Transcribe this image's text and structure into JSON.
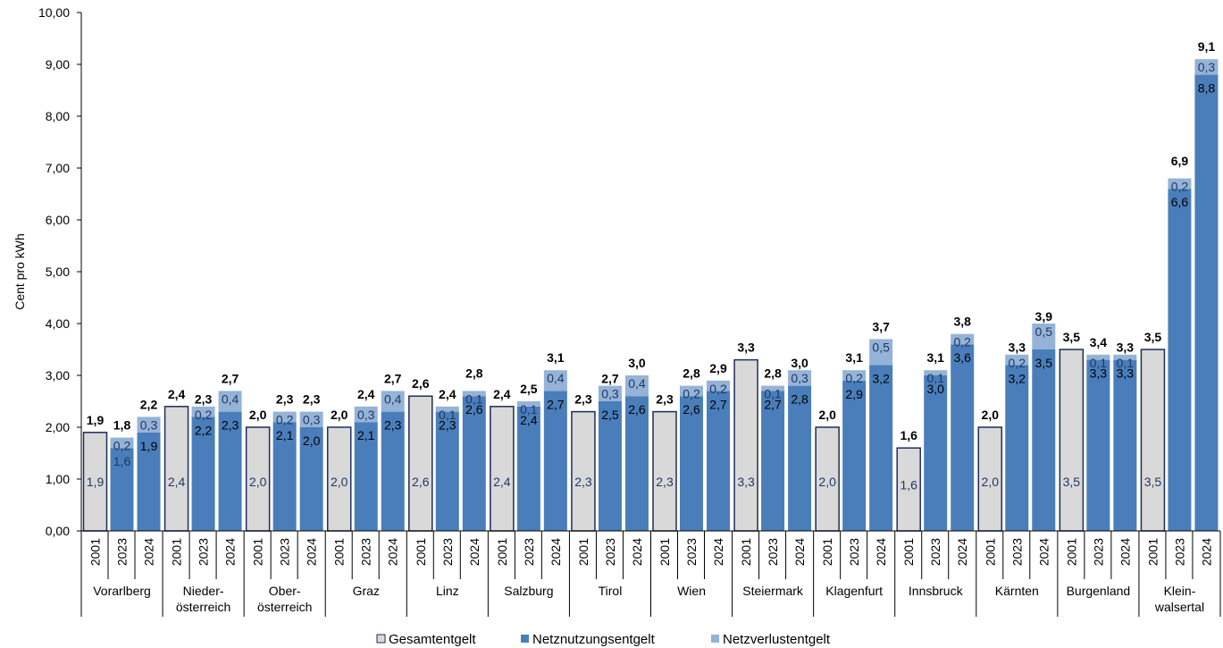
{
  "colors": {
    "gesamt_fill": "#d9d9d9",
    "gesamt_stroke": "#1f2d5c",
    "nutzung": "#4a7ebb",
    "verlust": "#95b3d7",
    "label_dark": "#1f3864",
    "total_label": "#000000",
    "axis": "#000000"
  },
  "chart_data": {
    "type": "bar",
    "stacked": true,
    "ylabel": "Cent pro kWh",
    "ylim": [
      0,
      10
    ],
    "y_ticks": [
      "0,00",
      "1,00",
      "2,00",
      "3,00",
      "4,00",
      "5,00",
      "6,00",
      "7,00",
      "8,00",
      "9,00",
      "10,00"
    ],
    "grid": false,
    "legend_position": "bottom",
    "legend": [
      {
        "name": "Gesamtentgelt",
        "color_key": "gesamt"
      },
      {
        "name": "Netznutzungsentgelt",
        "color_key": "nutzung"
      },
      {
        "name": "Netzverlustentgelt",
        "color_key": "verlust"
      }
    ],
    "groups": [
      {
        "name": "Vorarlberg",
        "bars": [
          {
            "year": "2001",
            "total": 1.9,
            "total_label": "1,9",
            "gesamt": 1.9,
            "gesamt_label": "1,9"
          },
          {
            "year": "2023",
            "total": 1.8,
            "total_label": "1,8",
            "nutzung": 1.6,
            "nutzung_label": "1,6",
            "verlust": 0.2,
            "verlust_label": "0,2"
          },
          {
            "year": "2024",
            "total": 2.2,
            "total_label": "2,2",
            "nutzung": 1.9,
            "nutzung_label": "1,9",
            "verlust": 0.3,
            "verlust_label": "0,3"
          }
        ]
      },
      {
        "name": "Nieder-\nösterreich",
        "bars": [
          {
            "year": "2001",
            "total": 2.4,
            "total_label": "2,4",
            "gesamt": 2.4,
            "gesamt_label": "2,4"
          },
          {
            "year": "2023",
            "total": 2.3,
            "total_label": "2,3",
            "nutzung": 2.2,
            "nutzung_label": "2,2",
            "verlust": 0.2,
            "verlust_label": "0,2"
          },
          {
            "year": "2024",
            "total": 2.7,
            "total_label": "2,7",
            "nutzung": 2.3,
            "nutzung_label": "2,3",
            "verlust": 0.4,
            "verlust_label": "0,4"
          }
        ]
      },
      {
        "name": "Ober-\nösterreich",
        "bars": [
          {
            "year": "2001",
            "total": 2.0,
            "total_label": "2,0",
            "gesamt": 2.0,
            "gesamt_label": "2,0"
          },
          {
            "year": "2023",
            "total": 2.3,
            "total_label": "2,3",
            "nutzung": 2.1,
            "nutzung_label": "2,1",
            "verlust": 0.2,
            "verlust_label": "0,2"
          },
          {
            "year": "2024",
            "total": 2.3,
            "total_label": "2,3",
            "nutzung": 2.0,
            "nutzung_label": "2,0",
            "verlust": 0.3,
            "verlust_label": "0,3"
          }
        ]
      },
      {
        "name": "Graz",
        "bars": [
          {
            "year": "2001",
            "total": 2.0,
            "total_label": "2,0",
            "gesamt": 2.0,
            "gesamt_label": "2,0"
          },
          {
            "year": "2023",
            "total": 2.4,
            "total_label": "2,4",
            "nutzung": 2.1,
            "nutzung_label": "2,1",
            "verlust": 0.3,
            "verlust_label": "0,3"
          },
          {
            "year": "2024",
            "total": 2.7,
            "total_label": "2,7",
            "nutzung": 2.3,
            "nutzung_label": "2,3",
            "verlust": 0.4,
            "verlust_label": "0,4"
          }
        ]
      },
      {
        "name": "Linz",
        "bars": [
          {
            "year": "2001",
            "total": 2.6,
            "total_label": "2,6",
            "gesamt": 2.6,
            "gesamt_label": "2,6"
          },
          {
            "year": "2023",
            "total": 2.4,
            "total_label": "2,4",
            "nutzung": 2.3,
            "nutzung_label": "2,3",
            "verlust": 0.1,
            "verlust_label": "0,1"
          },
          {
            "year": "2024",
            "total": 2.8,
            "total_label": "2,8",
            "nutzung": 2.6,
            "nutzung_label": "2,6",
            "verlust": 0.1,
            "verlust_label": "0,1"
          }
        ]
      },
      {
        "name": "Salzburg",
        "bars": [
          {
            "year": "2001",
            "total": 2.4,
            "total_label": "2,4",
            "gesamt": 2.4,
            "gesamt_label": "2,4"
          },
          {
            "year": "2023",
            "total": 2.5,
            "total_label": "2,5",
            "nutzung": 2.4,
            "nutzung_label": "2,4",
            "verlust": 0.1,
            "verlust_label": "0,1"
          },
          {
            "year": "2024",
            "total": 3.1,
            "total_label": "3,1",
            "nutzung": 2.7,
            "nutzung_label": "2,7",
            "verlust": 0.4,
            "verlust_label": "0,4"
          }
        ]
      },
      {
        "name": "Tirol",
        "bars": [
          {
            "year": "2001",
            "total": 2.3,
            "total_label": "2,3",
            "gesamt": 2.3,
            "gesamt_label": "2,3"
          },
          {
            "year": "2023",
            "total": 2.7,
            "total_label": "2,7",
            "nutzung": 2.5,
            "nutzung_label": "2,5",
            "verlust": 0.3,
            "verlust_label": "0,3"
          },
          {
            "year": "2024",
            "total": 3.0,
            "total_label": "3,0",
            "nutzung": 2.6,
            "nutzung_label": "2,6",
            "verlust": 0.4,
            "verlust_label": "0,4"
          }
        ]
      },
      {
        "name": "Wien",
        "bars": [
          {
            "year": "2001",
            "total": 2.3,
            "total_label": "2,3",
            "gesamt": 2.3,
            "gesamt_label": "2,3"
          },
          {
            "year": "2023",
            "total": 2.8,
            "total_label": "2,8",
            "nutzung": 2.6,
            "nutzung_label": "2,6",
            "verlust": 0.2,
            "verlust_label": "0,2"
          },
          {
            "year": "2024",
            "total": 2.9,
            "total_label": "2,9",
            "nutzung": 2.7,
            "nutzung_label": "2,7",
            "verlust": 0.2,
            "verlust_label": "0,2"
          }
        ]
      },
      {
        "name": "Steiermark",
        "bars": [
          {
            "year": "2001",
            "total": 3.3,
            "total_label": "3,3",
            "gesamt": 3.3,
            "gesamt_label": "3,3"
          },
          {
            "year": "2023",
            "total": 2.8,
            "total_label": "2,8",
            "nutzung": 2.7,
            "nutzung_label": "2,7",
            "verlust": 0.1,
            "verlust_label": "0,1"
          },
          {
            "year": "2024",
            "total": 3.0,
            "total_label": "3,0",
            "nutzung": 2.8,
            "nutzung_label": "2,8",
            "verlust": 0.3,
            "verlust_label": "0,3"
          }
        ]
      },
      {
        "name": "Klagenfurt",
        "bars": [
          {
            "year": "2001",
            "total": 2.0,
            "total_label": "2,0",
            "gesamt": 2.0,
            "gesamt_label": "2,0"
          },
          {
            "year": "2023",
            "total": 3.1,
            "total_label": "3,1",
            "nutzung": 2.9,
            "nutzung_label": "2,9",
            "verlust": 0.2,
            "verlust_label": "0,2"
          },
          {
            "year": "2024",
            "total": 3.7,
            "total_label": "3,7",
            "nutzung": 3.2,
            "nutzung_label": "3,2",
            "verlust": 0.5,
            "verlust_label": "0,5"
          }
        ]
      },
      {
        "name": "Innsbruck",
        "bars": [
          {
            "year": "2001",
            "total": 1.6,
            "total_label": "1,6",
            "gesamt": 1.6,
            "gesamt_label": "1,6"
          },
          {
            "year": "2023",
            "total": 3.1,
            "total_label": "3,1",
            "nutzung": 3.0,
            "nutzung_label": "3,0",
            "verlust": 0.1,
            "verlust_label": "0,1"
          },
          {
            "year": "2024",
            "total": 3.8,
            "total_label": "3,8",
            "nutzung": 3.6,
            "nutzung_label": "3,6",
            "verlust": 0.2,
            "verlust_label": "0,2"
          }
        ]
      },
      {
        "name": "Kärnten",
        "bars": [
          {
            "year": "2001",
            "total": 2.0,
            "total_label": "2,0",
            "gesamt": 2.0,
            "gesamt_label": "2,0"
          },
          {
            "year": "2023",
            "total": 3.3,
            "total_label": "3,3",
            "nutzung": 3.2,
            "nutzung_label": "3,2",
            "verlust": 0.2,
            "verlust_label": "0,2"
          },
          {
            "year": "2024",
            "total": 3.9,
            "total_label": "3,9",
            "nutzung": 3.5,
            "nutzung_label": "3,5",
            "verlust": 0.5,
            "verlust_label": "0,5"
          }
        ]
      },
      {
        "name": "Burgenland",
        "bars": [
          {
            "year": "2001",
            "total": 3.5,
            "total_label": "3,5",
            "gesamt": 3.5,
            "gesamt_label": "3,5"
          },
          {
            "year": "2023",
            "total": 3.4,
            "total_label": "3,4",
            "nutzung": 3.3,
            "nutzung_label": "3,3",
            "verlust": 0.1,
            "verlust_label": "0,1"
          },
          {
            "year": "2024",
            "total": 3.3,
            "total_label": "3,3",
            "nutzung": 3.3,
            "nutzung_label": "3,3",
            "verlust": 0.1,
            "verlust_label": "0,1"
          }
        ]
      },
      {
        "name": "Klein-\nwalsertal",
        "bars": [
          {
            "year": "2001",
            "total": 3.5,
            "total_label": "3,5",
            "gesamt": 3.5,
            "gesamt_label": "3,5"
          },
          {
            "year": "2023",
            "total": 6.9,
            "total_label": "6,9",
            "nutzung": 6.6,
            "nutzung_label": "6,6",
            "verlust": 0.2,
            "verlust_label": "0,2"
          },
          {
            "year": "2024",
            "total": 9.1,
            "total_label": "9,1",
            "nutzung": 8.8,
            "nutzung_label": "8,8",
            "verlust": 0.3,
            "verlust_label": "0,3"
          }
        ]
      }
    ]
  }
}
